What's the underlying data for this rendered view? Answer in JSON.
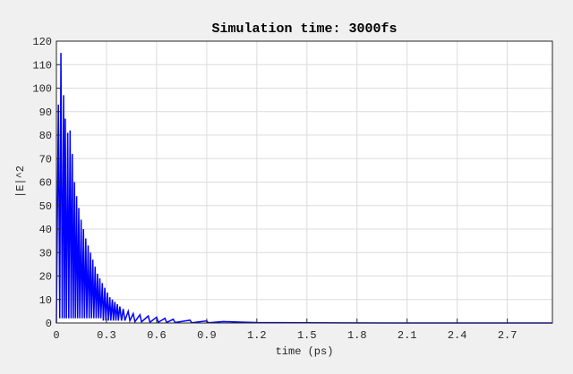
{
  "chart_data": {
    "type": "line",
    "title": "Simulation time: 3000fs",
    "xlabel": "time (ps)",
    "ylabel": "|E|^2",
    "color": "#0000ff",
    "grid": true,
    "xlim": [
      0,
      2.97
    ],
    "ylim": [
      0,
      120
    ],
    "xticks": [
      0,
      0.3,
      0.6,
      0.9,
      1.2,
      1.5,
      1.8,
      2.1,
      2.4,
      2.7
    ],
    "yticks": [
      0,
      10,
      20,
      30,
      40,
      50,
      60,
      70,
      80,
      90,
      100,
      110,
      120
    ],
    "x": [
      0,
      0.012,
      0.02,
      0.027,
      0.035,
      0.043,
      0.048,
      0.053,
      0.06,
      0.068,
      0.074,
      0.082,
      0.088,
      0.095,
      0.101,
      0.108,
      0.114,
      0.121,
      0.127,
      0.134,
      0.14,
      0.148,
      0.154,
      0.162,
      0.168,
      0.176,
      0.182,
      0.19,
      0.196,
      0.204,
      0.21,
      0.218,
      0.224,
      0.232,
      0.238,
      0.246,
      0.252,
      0.26,
      0.266,
      0.275,
      0.281,
      0.29,
      0.296,
      0.305,
      0.311,
      0.32,
      0.326,
      0.335,
      0.341,
      0.35,
      0.356,
      0.365,
      0.371,
      0.38,
      0.39,
      0.4,
      0.41,
      0.43,
      0.44,
      0.46,
      0.47,
      0.5,
      0.51,
      0.55,
      0.56,
      0.6,
      0.61,
      0.65,
      0.66,
      0.7,
      0.71,
      0.8,
      0.81,
      0.9,
      0.91,
      1.0,
      1.1,
      1.2,
      1.5,
      2.0,
      2.97
    ],
    "values": [
      0,
      93,
      2,
      115,
      2,
      97,
      2,
      87,
      2,
      81,
      2,
      82,
      2,
      72,
      2,
      60,
      2,
      54,
      2,
      49,
      2,
      44,
      2,
      40,
      2,
      36,
      2,
      33,
      2,
      30,
      2,
      27,
      2,
      24,
      2,
      21,
      2,
      19,
      2,
      17,
      1,
      15,
      1,
      13,
      1,
      11,
      1,
      10,
      1,
      9,
      1,
      8,
      1,
      7,
      1,
      6,
      1,
      5,
      1,
      4,
      0.5,
      3.5,
      0.5,
      3,
      0.3,
      2.5,
      0.3,
      2,
      0.2,
      1.6,
      0.2,
      1.2,
      0.1,
      0.9,
      0.1,
      0.6,
      0.4,
      0.2,
      0.1,
      0,
      0
    ]
  }
}
